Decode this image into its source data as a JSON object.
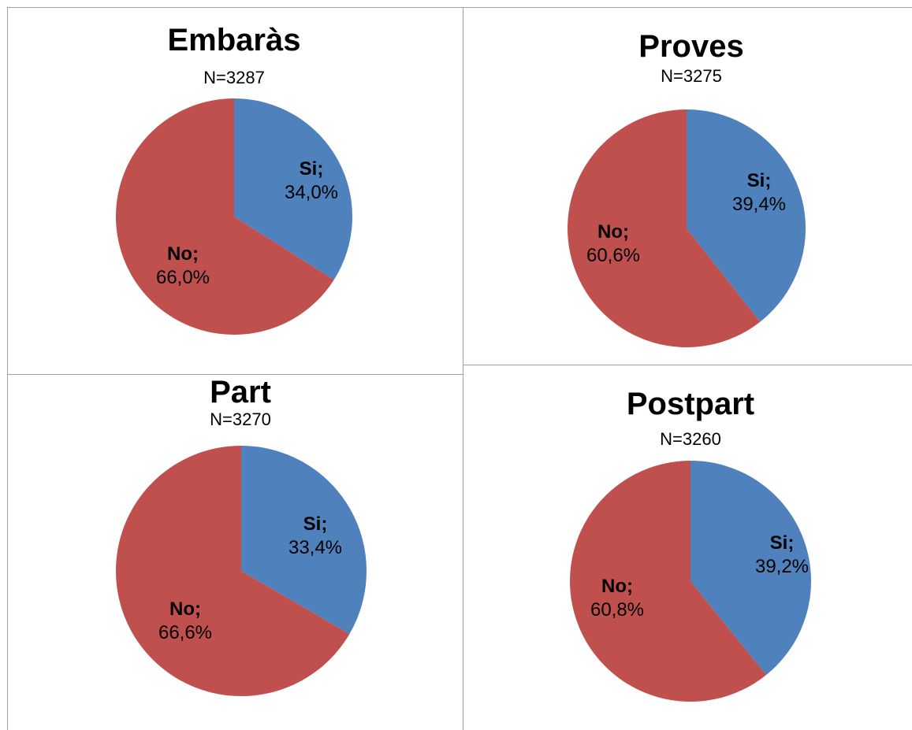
{
  "colors": {
    "si": "#4f81bd",
    "no": "#c0504d",
    "border": "#a0a0a0"
  },
  "chart_data": [
    {
      "type": "pie",
      "title": "Embaràs",
      "subtitle": "N=3287",
      "slices": [
        {
          "label": "Si",
          "value": 34.0,
          "text": "34,0%",
          "color": "#4f81bd"
        },
        {
          "label": "No",
          "value": 66.0,
          "text": "66,0%",
          "color": "#c0504d"
        }
      ]
    },
    {
      "type": "pie",
      "title": "Proves",
      "subtitle": "N=3275",
      "slices": [
        {
          "label": "Si",
          "value": 39.4,
          "text": "39,4%",
          "color": "#4f81bd"
        },
        {
          "label": "No",
          "value": 60.6,
          "text": "60,6%",
          "color": "#c0504d"
        }
      ]
    },
    {
      "type": "pie",
      "title": "Part",
      "subtitle": "N=3270",
      "slices": [
        {
          "label": "Si",
          "value": 33.4,
          "text": "33,4%",
          "color": "#4f81bd"
        },
        {
          "label": "No",
          "value": 66.6,
          "text": "66,6%",
          "color": "#c0504d"
        }
      ]
    },
    {
      "type": "pie",
      "title": "Postpart",
      "subtitle": "N=3260",
      "slices": [
        {
          "label": "Si",
          "value": 39.2,
          "text": "39,2%",
          "color": "#4f81bd"
        },
        {
          "label": "No",
          "value": 60.8,
          "text": "60,8%",
          "color": "#c0504d"
        }
      ]
    }
  ]
}
